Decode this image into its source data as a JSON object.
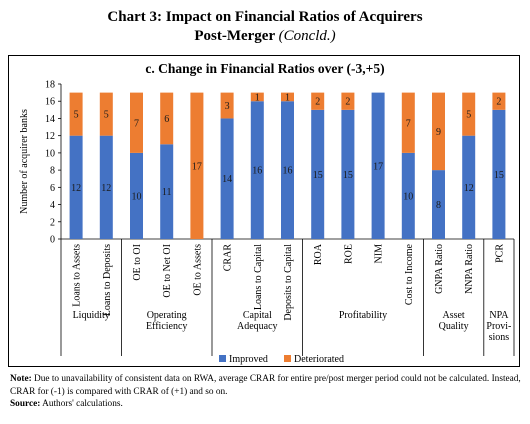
{
  "title": {
    "line1": "Chart 3: Impact on Financial Ratios of Acquirers",
    "line2": "Post-Merger",
    "line2_paren": "(Concld.)"
  },
  "chart_data": {
    "type": "bar",
    "stacked": true,
    "title": "c. Change in Financial Ratios over (-3,+5)",
    "ylabel": "Number of acquirer banks",
    "ylim": [
      0,
      18
    ],
    "yticks": [
      0,
      2,
      4,
      6,
      8,
      10,
      12,
      14,
      16,
      18
    ],
    "grid": false,
    "legend_position": "bottom",
    "categories": [
      "Loans to Assets",
      "Loans to Deposits",
      "OE to OI",
      "OE to Net OI",
      "OE to Assets",
      "CRAR",
      "Loans to Capital",
      "Deposits to Capital",
      "ROA",
      "ROE",
      "NIM",
      "Cost to Income",
      "GNPA Ratio",
      "NNPA Ratio",
      "PCR"
    ],
    "groups": [
      {
        "label_lines": [
          "Liquidity"
        ],
        "count": 2
      },
      {
        "label_lines": [
          "Operating",
          "Efficiency"
        ],
        "count": 3
      },
      {
        "label_lines": [
          "Capital",
          "Adequacy"
        ],
        "count": 3
      },
      {
        "label_lines": [
          "Profitability"
        ],
        "count": 4
      },
      {
        "label_lines": [
          "Asset",
          "Quality"
        ],
        "count": 2
      },
      {
        "label_lines": [
          "NPA",
          "Provi-",
          "sions"
        ],
        "count": 1
      }
    ],
    "series": [
      {
        "name": "Improved",
        "color": "#4472c4",
        "values": [
          12,
          12,
          10,
          11,
          0,
          14,
          16,
          16,
          15,
          15,
          17,
          10,
          8,
          12,
          15
        ]
      },
      {
        "name": "Deteriorated",
        "color": "#ed7d31",
        "values": [
          5,
          5,
          7,
          6,
          17,
          3,
          1,
          1,
          2,
          2,
          0,
          7,
          9,
          5,
          2
        ]
      }
    ]
  },
  "note": {
    "label": "Note:",
    "text": "Due to unavailability of consistent data on RWA, average CRAR for entire pre/post merger period could not be calculated. Instead, CRAR for (-1) is compared with CRAR of (+1) and so on.",
    "source_label": "Source:",
    "source_text": "Authors' calculations."
  }
}
